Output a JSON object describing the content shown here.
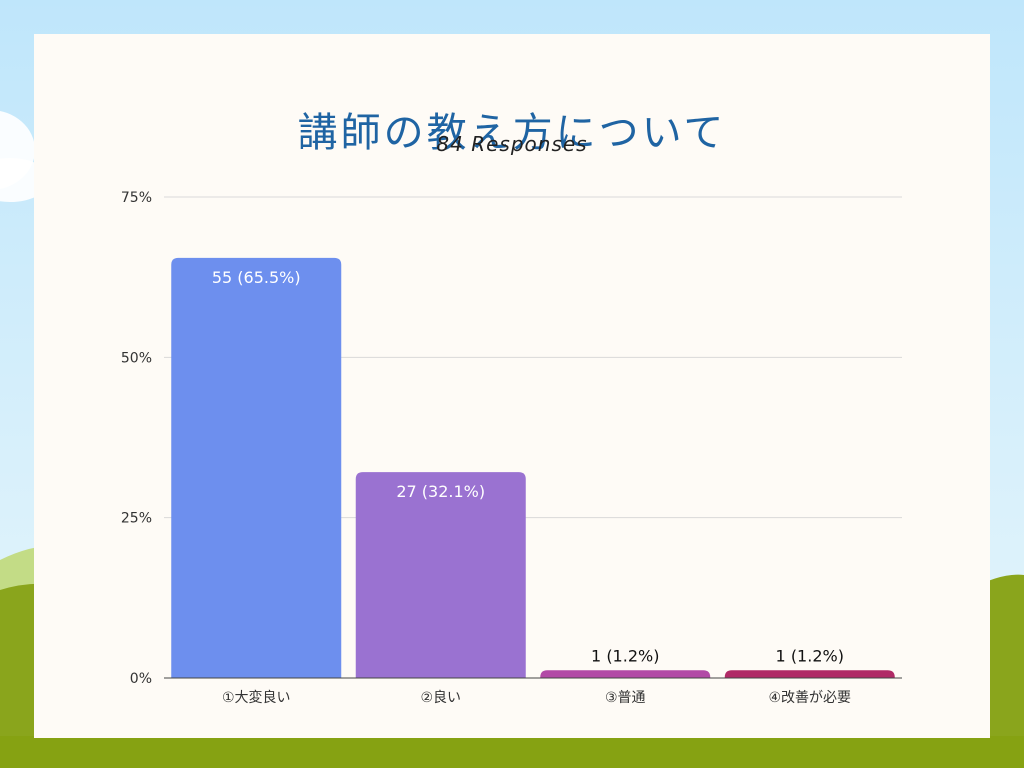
{
  "page": {
    "title": "講師の教え方について",
    "subtitle": "84 Responses"
  },
  "colors": {
    "card_bg": "#fefbf6",
    "title": "#1f64a3",
    "grid": "#d9d9d9",
    "axis": "#444444"
  },
  "chart_data": {
    "type": "bar",
    "title": "講師の教え方について",
    "subtitle": "84 Responses",
    "categories": [
      "①大変良い",
      "②良い",
      "③普通",
      "④改善が必要"
    ],
    "values": [
      65.5,
      32.1,
      1.2,
      1.2
    ],
    "data_labels": [
      "55 (65.5%)",
      "27 (32.1%)",
      "1 (1.2%)",
      "1 (1.2%)"
    ],
    "bar_colors": [
      "#6d8fee",
      "#9a72d1",
      "#b24aa6",
      "#b02a66"
    ],
    "y_ticks": [
      "0%",
      "25%",
      "50%",
      "75%"
    ],
    "y_tick_values": [
      0,
      25,
      50,
      75
    ],
    "ylim": [
      0,
      75
    ],
    "grid": true,
    "xlabel": "",
    "ylabel": ""
  }
}
